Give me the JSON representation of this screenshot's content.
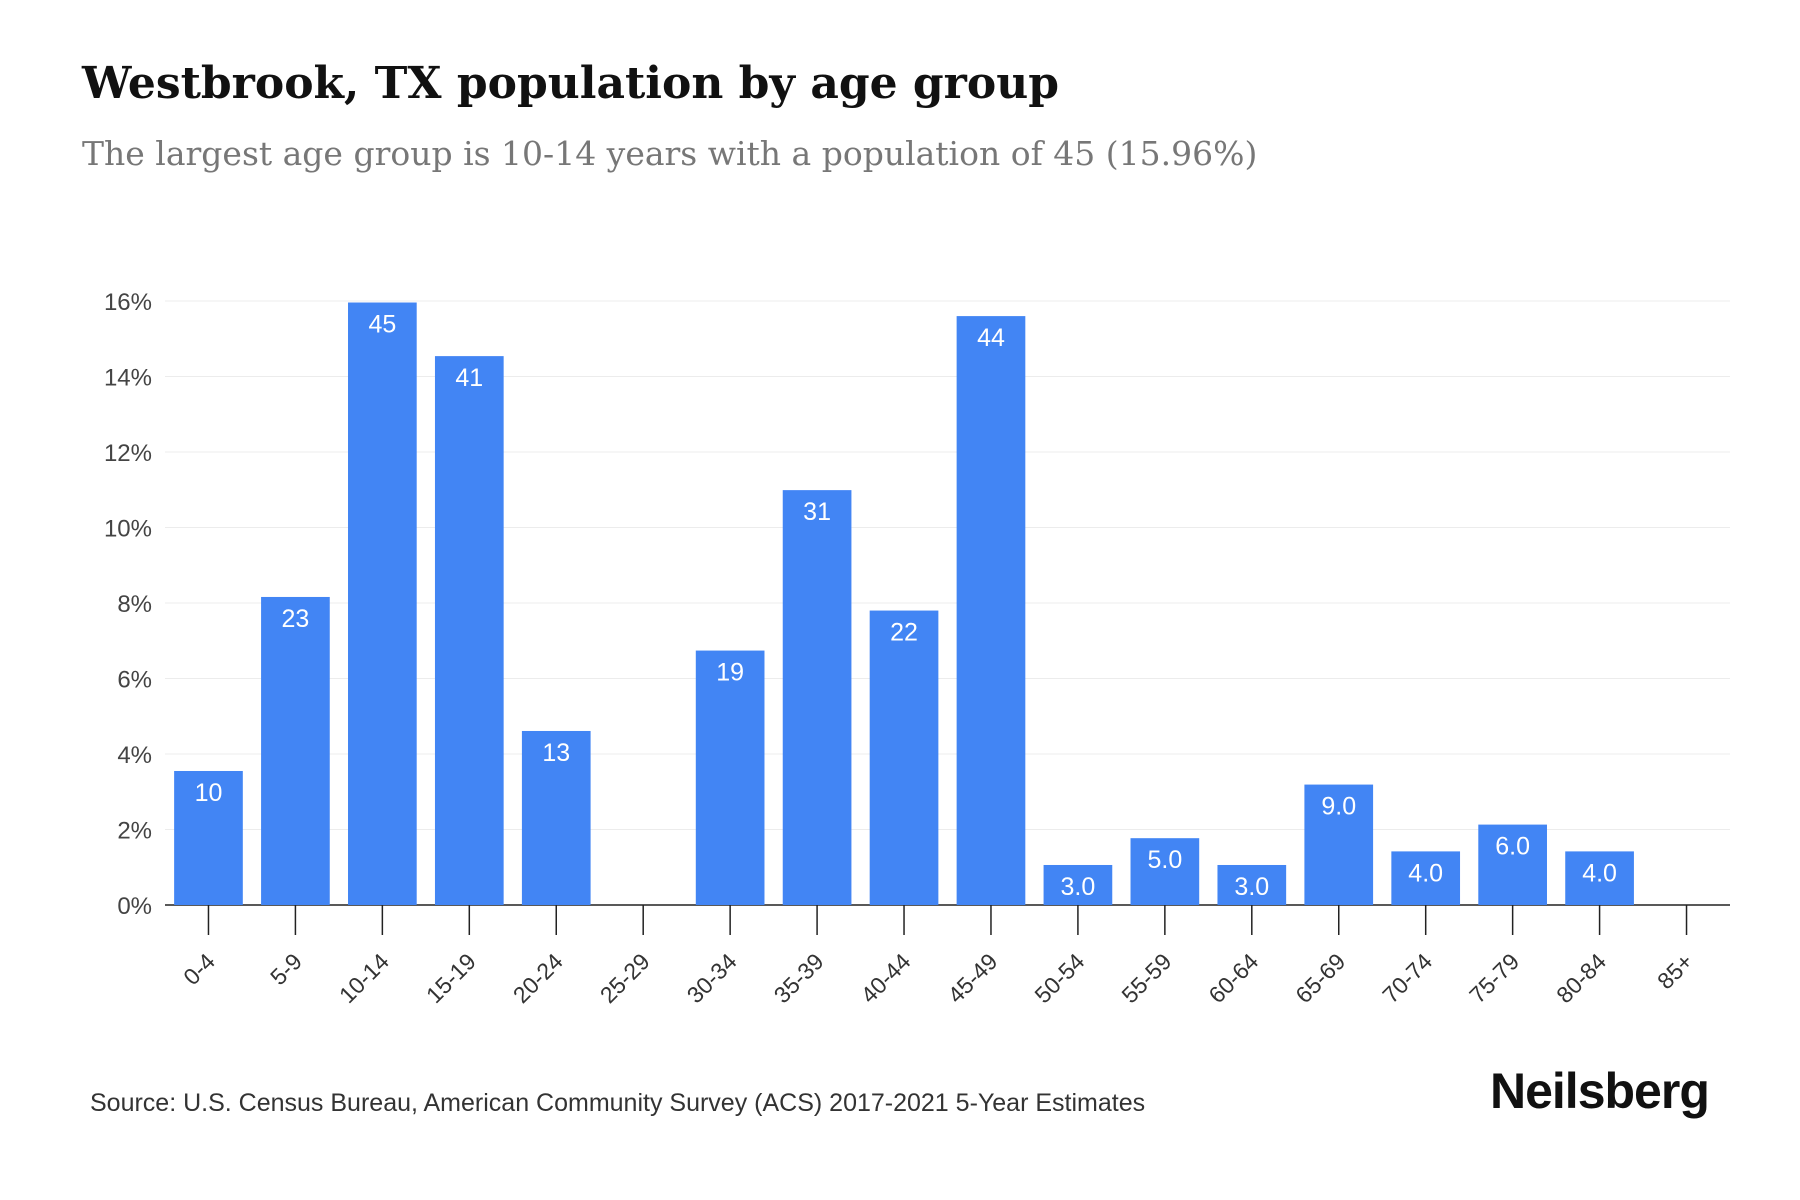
{
  "header": {
    "title": "Westbrook, TX population by age group",
    "subtitle": "The largest age group is 10-14 years with a population of 45 (15.96%)"
  },
  "footer": {
    "source": "Source: U.S. Census Bureau, American Community Survey (ACS) 2017-2021 5-Year Estimates",
    "brand": "Neilsberg"
  },
  "chart_data": {
    "type": "bar",
    "categories": [
      "0-4",
      "5-9",
      "10-14",
      "15-19",
      "20-24",
      "25-29",
      "30-34",
      "35-39",
      "40-44",
      "45-49",
      "50-54",
      "55-59",
      "60-64",
      "65-69",
      "70-74",
      "75-79",
      "80-84",
      "85+"
    ],
    "values": [
      3.55,
      8.16,
      15.96,
      14.54,
      4.61,
      0,
      6.74,
      10.99,
      7.8,
      15.6,
      1.06,
      1.77,
      1.06,
      3.19,
      1.42,
      2.13,
      1.42,
      0
    ],
    "data_labels": [
      "10",
      "23",
      "45",
      "41",
      "13",
      "",
      "19",
      "31",
      "22",
      "44",
      "3.0",
      "5.0",
      "3.0",
      "9.0",
      "4.0",
      "6.0",
      "4.0",
      ""
    ],
    "yticks": [
      "0%",
      "2%",
      "4%",
      "6%",
      "8%",
      "10%",
      "12%",
      "14%",
      "16%"
    ],
    "ylim": [
      0,
      16
    ],
    "grid": true,
    "bar_color": "#4285f4",
    "xlabel": "",
    "ylabel": ""
  }
}
